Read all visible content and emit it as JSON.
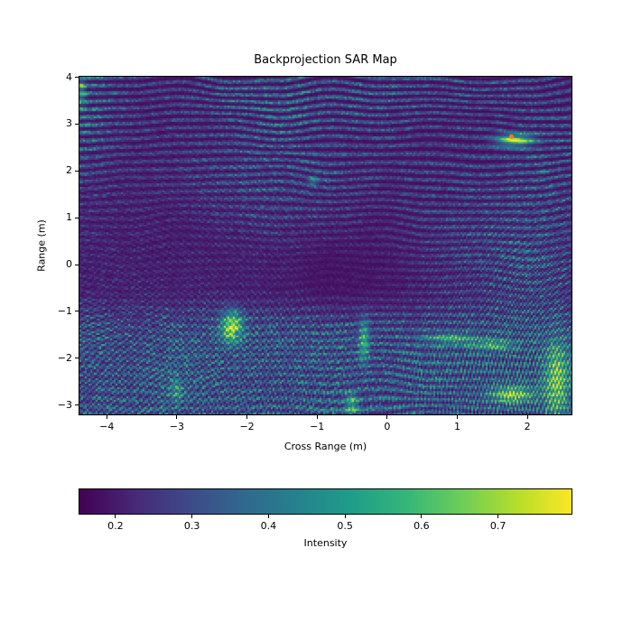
{
  "figure": {
    "title": "Backprojection SAR Map",
    "background_color": "#ffffff",
    "text_color": "#000000"
  },
  "plot": {
    "xlabel": "Cross Range (m)",
    "ylabel": "Range (m)",
    "x_ticks": [
      {
        "v": -4,
        "label": "−4"
      },
      {
        "v": -3,
        "label": "−3"
      },
      {
        "v": -2,
        "label": "−2"
      },
      {
        "v": -1,
        "label": "−1"
      },
      {
        "v": 0,
        "label": "0"
      },
      {
        "v": 1,
        "label": "1"
      },
      {
        "v": 2,
        "label": "2"
      }
    ],
    "y_ticks": [
      {
        "v": 4,
        "label": "4"
      },
      {
        "v": 3,
        "label": "3"
      },
      {
        "v": 2,
        "label": "2"
      },
      {
        "v": 1,
        "label": "1"
      },
      {
        "v": 0,
        "label": "0"
      },
      {
        "v": -1,
        "label": "−1"
      },
      {
        "v": -2,
        "label": "−2"
      },
      {
        "v": -3,
        "label": "−3"
      }
    ]
  },
  "colorbar": {
    "label": "Intensity",
    "orientation": "horizontal",
    "vmin": 0.153,
    "vmax": 0.796,
    "ticks": [
      {
        "v": 0.2,
        "label": "0.2"
      },
      {
        "v": 0.3,
        "label": "0.3"
      },
      {
        "v": 0.4,
        "label": "0.4"
      },
      {
        "v": 0.5,
        "label": "0.5"
      },
      {
        "v": 0.6,
        "label": "0.6"
      },
      {
        "v": 0.7,
        "label": "0.7"
      }
    ],
    "colormap": "viridis",
    "stops": [
      "#440154",
      "#482878",
      "#3e4a89",
      "#31688e",
      "#26828e",
      "#1f9e89",
      "#35b779",
      "#6ece58",
      "#b5de2b",
      "#fde725"
    ]
  },
  "chart_data": {
    "type": "heatmap",
    "title": "Backprojection SAR Map",
    "xlabel": "Cross Range (m)",
    "ylabel": "Range (m)",
    "colorbar_label": "Intensity",
    "x_extent": [
      -4.39,
      2.63
    ],
    "y_extent": [
      -3.2,
      4.01
    ],
    "intensity_range": [
      0.153,
      0.796
    ],
    "background_description": "dark viridis speckle field with wavy interference fringes; sparse teal speckle in upper half, dense teal-green speckle band below Range -0.7 m",
    "bright_spots": [
      {
        "x": 1.82,
        "y": 2.66,
        "sx": 0.17,
        "sy": 0.09,
        "amp": 0.95,
        "note": "strong target upper right"
      },
      {
        "x": -2.21,
        "y": -1.33,
        "sx": 0.1,
        "sy": 0.22,
        "amp": 0.95,
        "note": "strong target lower left"
      },
      {
        "x": -0.33,
        "y": -1.64,
        "sx": 0.05,
        "sy": 0.31,
        "amp": 0.62,
        "note": "vertical streak"
      },
      {
        "x": 0.92,
        "y": -1.58,
        "sx": 0.24,
        "sy": 0.08,
        "amp": 0.5,
        "note": "horizontal streak"
      },
      {
        "x": 1.5,
        "y": -1.72,
        "sx": 0.19,
        "sy": 0.08,
        "amp": 0.55,
        "note": "horizontal streak"
      },
      {
        "x": 1.79,
        "y": -2.78,
        "sx": 0.21,
        "sy": 0.12,
        "amp": 0.75,
        "note": "bright patch bottom"
      },
      {
        "x": 2.42,
        "y": -2.45,
        "sx": 0.12,
        "sy": 0.55,
        "amp": 0.7,
        "note": "vertical arcs right edge"
      },
      {
        "x": -0.51,
        "y": -3.0,
        "sx": 0.06,
        "sy": 0.2,
        "amp": 0.5,
        "note": "bottom streak"
      },
      {
        "x": -3.01,
        "y": -2.68,
        "sx": 0.07,
        "sy": 0.18,
        "amp": 0.35,
        "note": "faint streak"
      },
      {
        "x": -1.05,
        "y": 1.79,
        "sx": 0.05,
        "sy": 0.06,
        "amp": 0.45,
        "note": "small green spot"
      },
      {
        "x": -4.36,
        "y": 3.7,
        "sx": 0.04,
        "sy": 0.2,
        "amp": 0.45,
        "note": "left edge streak"
      }
    ],
    "density_regions": [
      {
        "x": -1.8,
        "y": 1.9,
        "sx": 0.7,
        "sy": 0.75,
        "amp": 0.16
      },
      {
        "x": -1.0,
        "y": 3.45,
        "sx": 1.3,
        "sy": 0.5,
        "amp": 0.13
      },
      {
        "x": -4.35,
        "y": 3.5,
        "sx": 0.3,
        "sy": 0.9,
        "amp": 0.2
      },
      {
        "x": 1.9,
        "y": 0.0,
        "sx": 0.9,
        "sy": 0.8,
        "amp": 0.17
      },
      {
        "x": 2.4,
        "y": 2.0,
        "sx": 0.5,
        "sy": 0.8,
        "amp": 0.1
      },
      {
        "x": -0.4,
        "y": -0.25,
        "sx": 1.0,
        "sy": 0.8,
        "amp": -0.1
      },
      {
        "x": -3.4,
        "y": 0.3,
        "sx": 0.8,
        "sy": 1.0,
        "amp": -0.05
      }
    ],
    "bottom_band": {
      "start_y": -0.45,
      "end_y": -1.75,
      "amp": 0.3
    },
    "markers": [
      {
        "x": 1.77,
        "y": 2.72,
        "color": "#ff7f0e",
        "shape": "dot",
        "name": "orange"
      },
      {
        "x": -2.14,
        "y": -1.47,
        "color": "#1f77b4",
        "shape": "dot",
        "name": "blue"
      }
    ]
  }
}
